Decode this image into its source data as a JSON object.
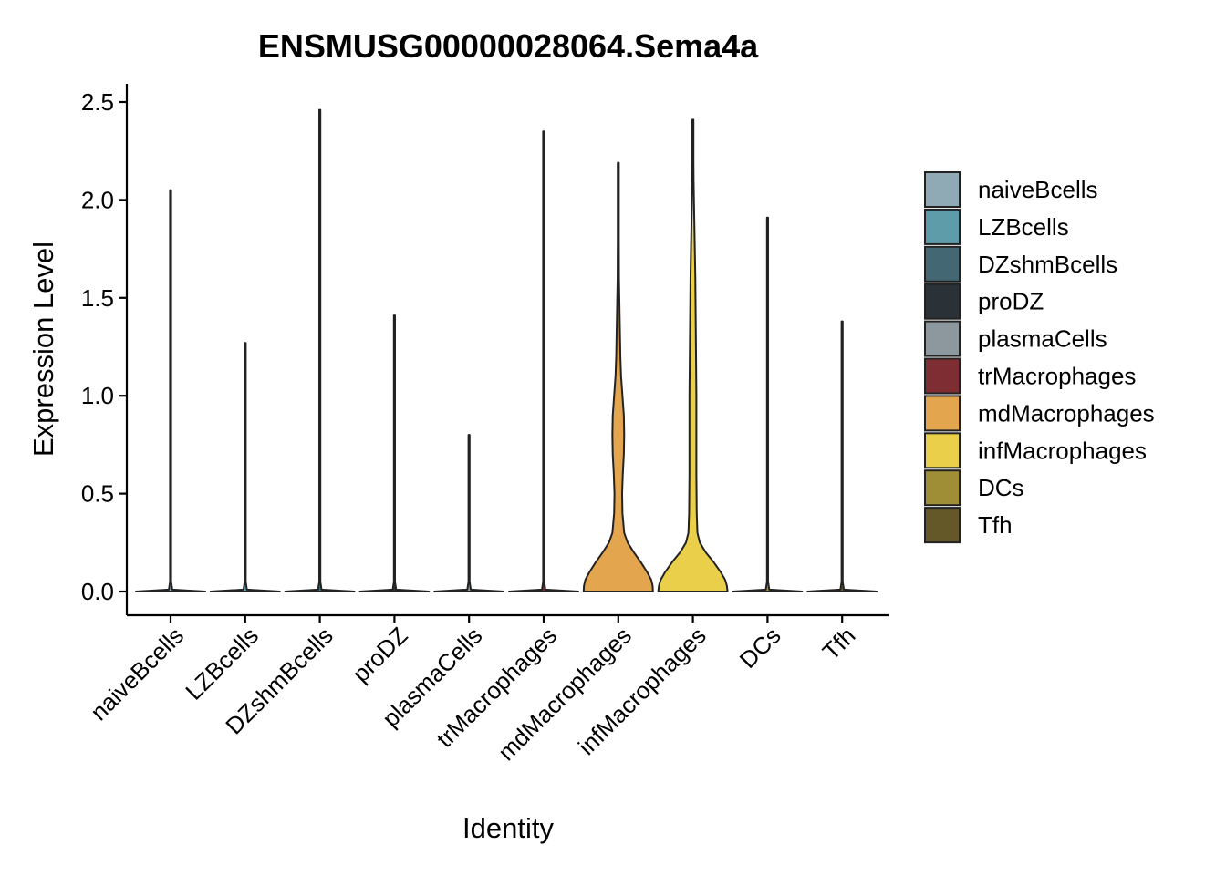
{
  "chart_data": {
    "type": "violin",
    "title": "ENSMUSG00000028064.Sema4a",
    "xlabel": "Identity",
    "ylabel": "Expression Level",
    "ylim": [
      -0.13,
      2.6
    ],
    "yticks": [
      "0.0",
      "0.5",
      "1.0",
      "1.5",
      "2.0",
      "2.5"
    ],
    "ytick_values": [
      0,
      0.5,
      1.0,
      1.5,
      2.0,
      2.5
    ],
    "grid": false,
    "legend_position": "right",
    "categories": [
      "naiveBcells",
      "LZBcells",
      "DZshmBcells",
      "proDZ",
      "plasmaCells",
      "trMacrophages",
      "mdMacrophages",
      "infMacrophages",
      "DCs",
      "Tfh"
    ],
    "colors": [
      "#8FA9B5",
      "#5F9CAA",
      "#446873",
      "#2B3237",
      "#8D989E",
      "#7E2E33",
      "#E3A54E",
      "#EACF4A",
      "#A08E36",
      "#655828"
    ],
    "series": [
      {
        "category": "naiveBcells",
        "max": 2.05,
        "density": [
          [
            0,
            1.0
          ],
          [
            0.01,
            0.05
          ],
          [
            0.05,
            0
          ],
          [
            2.05,
            0
          ]
        ]
      },
      {
        "category": "LZBcells",
        "max": 1.27,
        "density": [
          [
            0,
            1.0
          ],
          [
            0.01,
            0.05
          ],
          [
            0.05,
            0
          ],
          [
            1.27,
            0
          ]
        ]
      },
      {
        "category": "DZshmBcells",
        "max": 2.46,
        "density": [
          [
            0,
            1.0
          ],
          [
            0.01,
            0.05
          ],
          [
            0.05,
            0
          ],
          [
            2.46,
            0
          ]
        ]
      },
      {
        "category": "proDZ",
        "max": 1.41,
        "density": [
          [
            0,
            1.0
          ],
          [
            0.01,
            0.05
          ],
          [
            0.05,
            0
          ],
          [
            1.41,
            0
          ]
        ]
      },
      {
        "category": "plasmaCells",
        "max": 0.8,
        "density": [
          [
            0,
            1.0
          ],
          [
            0.01,
            0.05
          ],
          [
            0.05,
            0
          ],
          [
            0.8,
            0
          ]
        ]
      },
      {
        "category": "trMacrophages",
        "max": 2.35,
        "density": [
          [
            0,
            1.0
          ],
          [
            0.01,
            0.05
          ],
          [
            0.05,
            0
          ],
          [
            2.35,
            0
          ]
        ]
      },
      {
        "category": "mdMacrophages",
        "max": 2.19,
        "density": [
          [
            0,
            1.0
          ],
          [
            0.03,
            0.99
          ],
          [
            0.06,
            0.95
          ],
          [
            0.1,
            0.83
          ],
          [
            0.15,
            0.65
          ],
          [
            0.2,
            0.45
          ],
          [
            0.25,
            0.27
          ],
          [
            0.3,
            0.17
          ],
          [
            0.4,
            0.12
          ],
          [
            0.5,
            0.11
          ],
          [
            0.6,
            0.13
          ],
          [
            0.7,
            0.16
          ],
          [
            0.8,
            0.17
          ],
          [
            0.9,
            0.16
          ],
          [
            1.0,
            0.12
          ],
          [
            1.1,
            0.08
          ],
          [
            1.2,
            0.06
          ],
          [
            1.3,
            0.05
          ],
          [
            1.4,
            0.04
          ],
          [
            1.5,
            0.03
          ],
          [
            1.6,
            0.02
          ],
          [
            1.8,
            0.01
          ],
          [
            2.0,
            0.005
          ],
          [
            2.19,
            0
          ]
        ]
      },
      {
        "category": "infMacrophages",
        "max": 2.41,
        "density": [
          [
            0,
            1.0
          ],
          [
            0.03,
            0.98
          ],
          [
            0.06,
            0.93
          ],
          [
            0.1,
            0.8
          ],
          [
            0.15,
            0.6
          ],
          [
            0.2,
            0.37
          ],
          [
            0.25,
            0.2
          ],
          [
            0.3,
            0.13
          ],
          [
            0.4,
            0.11
          ],
          [
            0.6,
            0.1
          ],
          [
            0.8,
            0.1
          ],
          [
            1.0,
            0.1
          ],
          [
            1.2,
            0.09
          ],
          [
            1.4,
            0.08
          ],
          [
            1.6,
            0.07
          ],
          [
            1.8,
            0.05
          ],
          [
            1.9,
            0.04
          ],
          [
            2.0,
            0.03
          ],
          [
            2.1,
            0.02
          ],
          [
            2.2,
            0.01
          ],
          [
            2.3,
            0.005
          ],
          [
            2.41,
            0
          ]
        ]
      },
      {
        "category": "DCs",
        "max": 1.91,
        "density": [
          [
            0,
            1.0
          ],
          [
            0.01,
            0.05
          ],
          [
            0.05,
            0
          ],
          [
            1.91,
            0
          ]
        ]
      },
      {
        "category": "Tfh",
        "max": 1.38,
        "density": [
          [
            0,
            1.0
          ],
          [
            0.01,
            0.05
          ],
          [
            0.05,
            0
          ],
          [
            1.38,
            0
          ]
        ]
      }
    ]
  }
}
